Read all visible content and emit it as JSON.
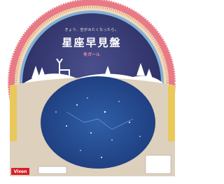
{
  "header": {
    "tagline": "きょう、空がみたくなったら。",
    "title": "星座早見盤",
    "subtitle": "冬ガール"
  },
  "footer": {
    "brand": "Vixen"
  }
}
